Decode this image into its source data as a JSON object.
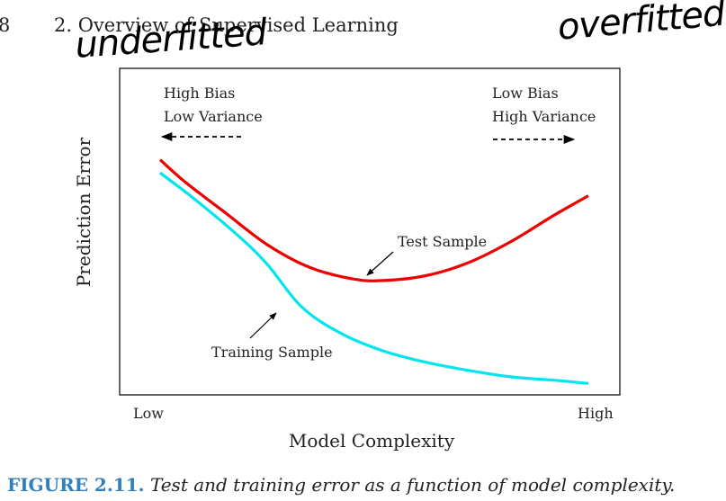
{
  "header": {
    "page_number": "8",
    "running_head": "2.  Overview of Supervised Learning"
  },
  "annotations": {
    "left": "underfitted",
    "right": "overfitted"
  },
  "figure": {
    "caption_label": "FIGURE 2.11.",
    "caption_text": "Test and training error as a function of model complexity."
  },
  "chart_data": {
    "type": "line",
    "xlabel": "Model Complexity",
    "ylabel": "Prediction Error",
    "x_ticks": [
      "Low",
      "High"
    ],
    "region_labels": {
      "left": [
        "High Bias",
        "Low Variance"
      ],
      "right": [
        "Low Bias",
        "High Variance"
      ]
    },
    "xlim": [
      0,
      1
    ],
    "ylim": [
      0,
      1
    ],
    "series": [
      {
        "name": "Test Sample",
        "color": "#ee0000",
        "x": [
          0,
          0.06,
          0.15,
          0.25,
          0.35,
          0.45,
          0.52,
          0.62,
          0.72,
          0.82,
          0.92,
          1.0
        ],
        "y": [
          0.72,
          0.65,
          0.56,
          0.46,
          0.39,
          0.355,
          0.35,
          0.365,
          0.405,
          0.47,
          0.55,
          0.61
        ]
      },
      {
        "name": "Training Sample",
        "color": "#00e5ee",
        "x": [
          0,
          0.08,
          0.18,
          0.25,
          0.33,
          0.42,
          0.52,
          0.62,
          0.72,
          0.82,
          0.92,
          1.0
        ],
        "y": [
          0.68,
          0.6,
          0.49,
          0.4,
          0.27,
          0.19,
          0.135,
          0.1,
          0.075,
          0.055,
          0.045,
          0.035
        ]
      }
    ]
  }
}
